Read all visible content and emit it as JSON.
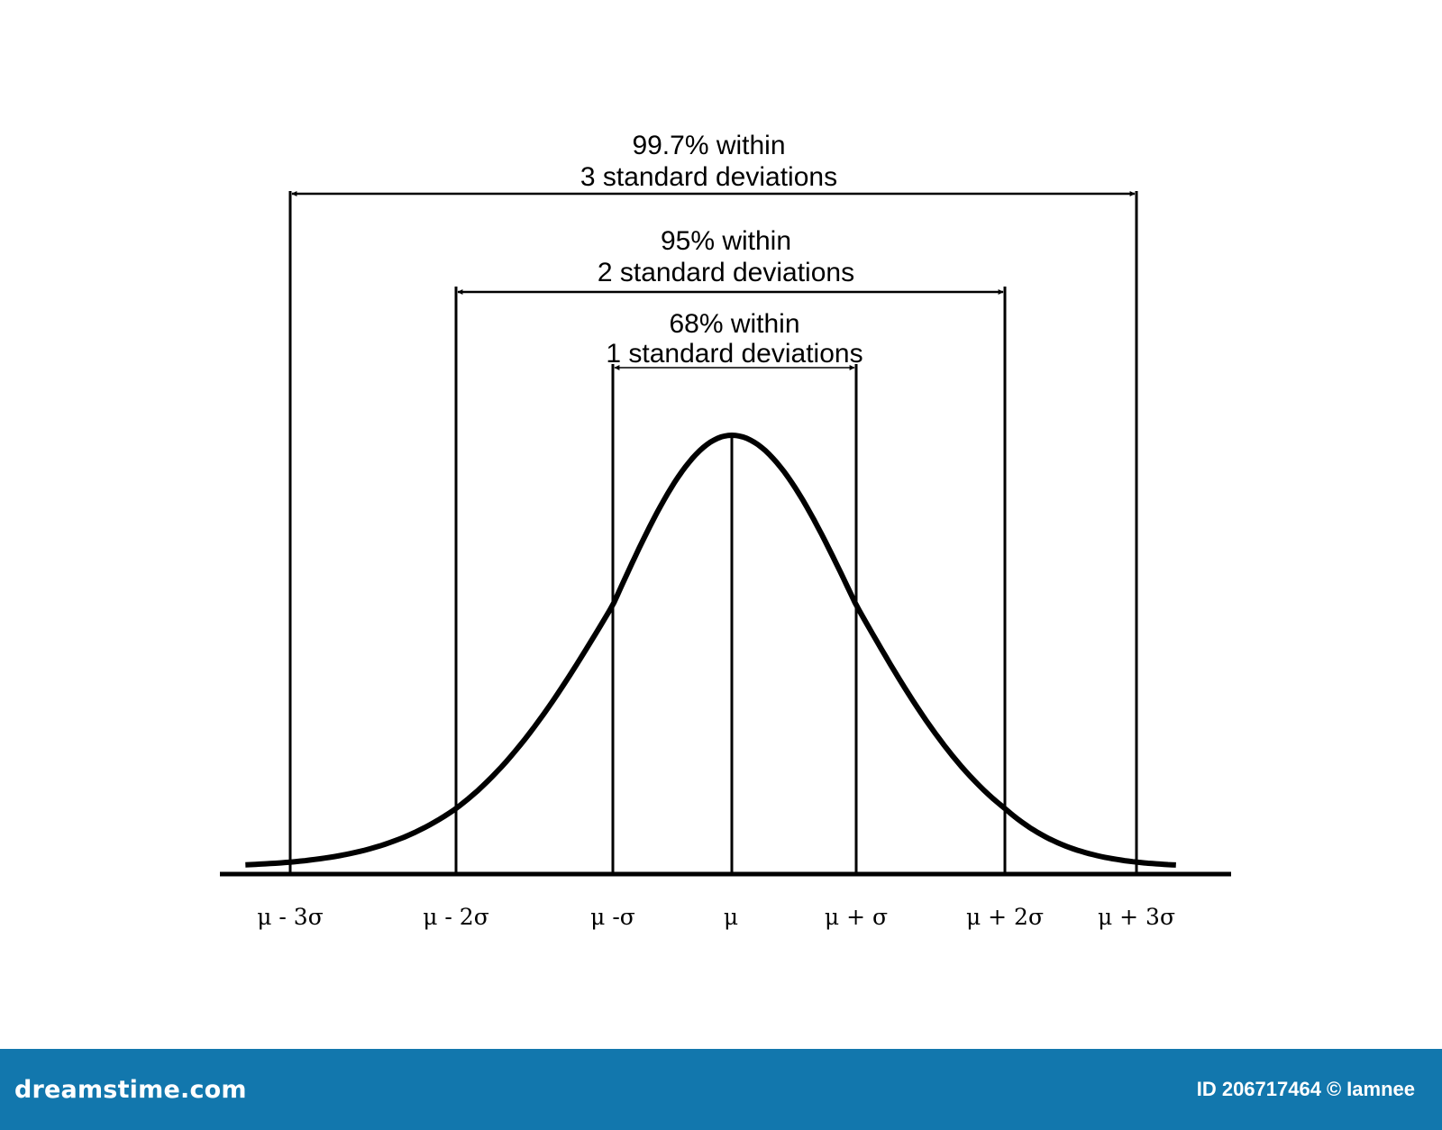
{
  "diagram": {
    "annotations": [
      {
        "line1": "99.7% within",
        "line2": "3 standard deviations",
        "from": -3,
        "to": 3
      },
      {
        "line1": "95% within",
        "line2": "2 standard deviations",
        "from": -2,
        "to": 2
      },
      {
        "line1": "68% within",
        "line2": "1 standard deviations",
        "from": -1,
        "to": 1
      }
    ],
    "ticks": [
      {
        "k": -3,
        "label": "μ - 3σ"
      },
      {
        "k": -2,
        "label": "μ - 2σ"
      },
      {
        "k": -1,
        "label": "μ -σ"
      },
      {
        "k": 0,
        "label": "μ"
      },
      {
        "k": 1,
        "label": "μ + σ"
      },
      {
        "k": 2,
        "label": "μ + 2σ"
      },
      {
        "k": 3,
        "label": "μ + 3σ"
      }
    ]
  },
  "footer": {
    "brand": "dreamstime.com",
    "id_label": "ID 206717464",
    "copyright": "©",
    "author": "Iamnee"
  },
  "colors": {
    "footer_bg": "#1277ad",
    "line": "#000000"
  }
}
